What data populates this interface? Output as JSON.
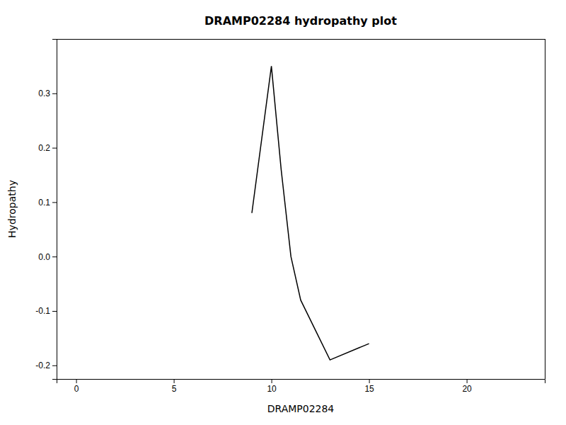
{
  "chart_data": {
    "type": "line",
    "title": "DRAMP02284 hydropathy plot",
    "xlabel": "DRAMP02284",
    "ylabel": "Hydropathy",
    "x": [
      9.0,
      10.0,
      10.5,
      11.0,
      11.5,
      11.5,
      13.0,
      15.0
    ],
    "values": [
      0.08,
      0.35,
      0.16,
      0.0,
      -0.08,
      -0.08,
      -0.19,
      -0.16
    ],
    "color": "black",
    "xlim": [
      -1,
      24
    ],
    "ylim": [
      -0.225,
      0.4
    ],
    "xticks": [
      0,
      5,
      10,
      15,
      20
    ],
    "yticks": [
      -0.2,
      -0.1,
      {
        "value": 0.0,
        "label": "0.0"
      },
      0.1,
      0.2,
      0.3
    ],
    "grid": false
  }
}
